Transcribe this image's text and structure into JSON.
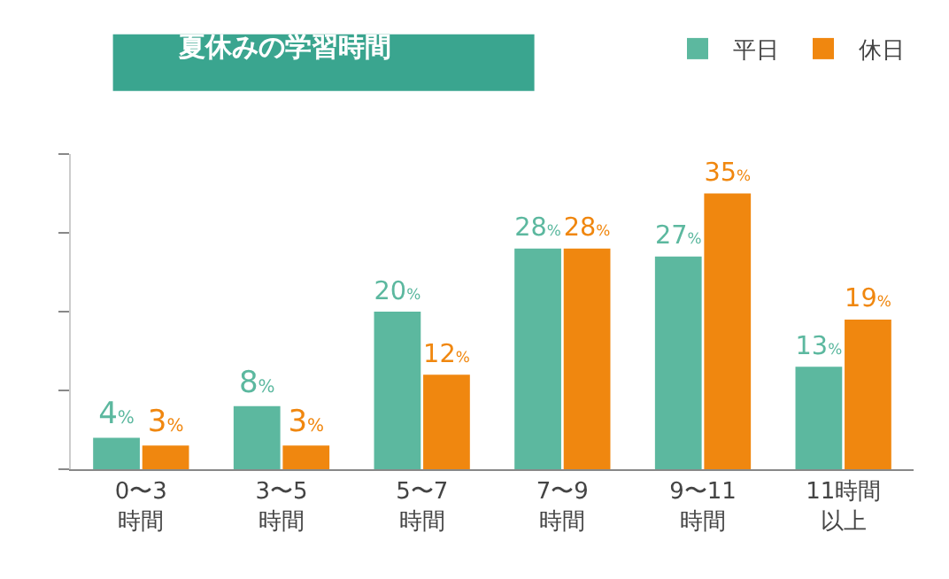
{
  "chart_data": {
    "type": "bar",
    "title": "夏休みの学習時間",
    "categories": [
      "0〜3時間",
      "3〜5時間",
      "5〜7時間",
      "7〜9時間",
      "9〜11時間",
      "11時間以上"
    ],
    "series": [
      {
        "name": "平日",
        "color": "#5cb89f",
        "values": [
          4,
          8,
          20,
          28,
          27,
          13
        ],
        "value_labels": [
          "4%",
          "8%",
          "20%",
          "28%",
          "27%",
          "13%"
        ]
      },
      {
        "name": "休日",
        "color": "#f0870f",
        "values": [
          3,
          3,
          12,
          28,
          35,
          19
        ],
        "value_labels": [
          "3%",
          "3%",
          "12%",
          "28%",
          "35%",
          "19%"
        ]
      }
    ],
    "ylim": [
      0,
      40
    ],
    "yticks": [
      {
        "value": 0,
        "label": null
      },
      {
        "value": 10,
        "label": null
      },
      {
        "value": 20,
        "label": null
      },
      {
        "value": 30,
        "label": null
      },
      {
        "value": 40,
        "label": null
      }
    ],
    "tick_labels": "x",
    "legend": "top right"
  }
}
